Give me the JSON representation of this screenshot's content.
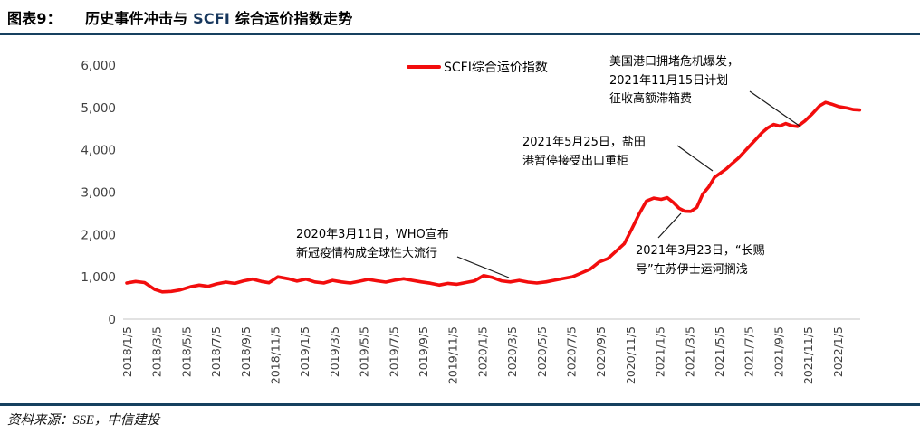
{
  "header": {
    "label": "图表9：",
    "title_pre": "历史事件冲击与 ",
    "title_scfi": "SCFI",
    "title_post": " 综合运价指数走势"
  },
  "legend": {
    "label": "SCFI综合运价指数"
  },
  "footer": {
    "source": "资料来源：SSE，中信建投"
  },
  "colors": {
    "line": "#f20d0d",
    "rule": "#16405f",
    "scfi_text": "#17375d",
    "axis_line": "#d9d9d9",
    "tick_text": "#404040",
    "pointer": "#1a1a1a"
  },
  "chart_data": {
    "type": "line",
    "title": "SCFI综合运价指数",
    "xlabel": "",
    "ylabel": "",
    "ylim": [
      0,
      6000
    ],
    "y_ticks": [
      0,
      1000,
      2000,
      3000,
      4000,
      5000,
      6000
    ],
    "x_tick_labels": [
      "2018/1/5",
      "2018/3/5",
      "2018/5/5",
      "2018/7/5",
      "2018/9/5",
      "2018/11/5",
      "2019/1/5",
      "2019/3/5",
      "2019/5/5",
      "2019/7/5",
      "2019/9/5",
      "2019/11/5",
      "2020/1/5",
      "2020/3/5",
      "2020/5/5",
      "2020/7/5",
      "2020/9/5",
      "2020/11/5",
      "2021/1/5",
      "2021/3/5",
      "2021/5/5",
      "2021/7/5",
      "2021/9/5",
      "2021/11/5",
      "2022/1/5"
    ],
    "x_tick_interval_months": 2,
    "grid": false,
    "legend_position": "top-center",
    "series": [
      {
        "name": "SCFI综合运价指数",
        "color": "#f20d0d",
        "points_format": "[months_since_2018_1_5, index_value]",
        "points": [
          [
            0,
            855
          ],
          [
            0.6,
            890
          ],
          [
            1.2,
            865
          ],
          [
            1.9,
            700
          ],
          [
            2.4,
            645
          ],
          [
            3.0,
            655
          ],
          [
            3.6,
            690
          ],
          [
            4.3,
            765
          ],
          [
            4.9,
            805
          ],
          [
            5.5,
            775
          ],
          [
            6.1,
            835
          ],
          [
            6.7,
            875
          ],
          [
            7.3,
            845
          ],
          [
            7.9,
            905
          ],
          [
            8.5,
            945
          ],
          [
            9.1,
            890
          ],
          [
            9.6,
            860
          ],
          [
            10.2,
            1000
          ],
          [
            10.9,
            955
          ],
          [
            11.5,
            900
          ],
          [
            12.1,
            945
          ],
          [
            12.7,
            880
          ],
          [
            13.3,
            855
          ],
          [
            13.9,
            915
          ],
          [
            14.5,
            880
          ],
          [
            15.1,
            855
          ],
          [
            15.7,
            895
          ],
          [
            16.3,
            940
          ],
          [
            16.9,
            905
          ],
          [
            17.5,
            875
          ],
          [
            18.1,
            920
          ],
          [
            18.7,
            955
          ],
          [
            19.3,
            915
          ],
          [
            19.9,
            880
          ],
          [
            20.5,
            850
          ],
          [
            21.1,
            805
          ],
          [
            21.7,
            845
          ],
          [
            22.3,
            825
          ],
          [
            22.9,
            865
          ],
          [
            23.5,
            905
          ],
          [
            24.1,
            1030
          ],
          [
            24.7,
            985
          ],
          [
            25.3,
            905
          ],
          [
            25.9,
            880
          ],
          [
            26.5,
            915
          ],
          [
            27.1,
            875
          ],
          [
            27.7,
            855
          ],
          [
            28.3,
            880
          ],
          [
            28.9,
            920
          ],
          [
            29.5,
            960
          ],
          [
            30.1,
            1000
          ],
          [
            30.7,
            1090
          ],
          [
            31.3,
            1180
          ],
          [
            31.9,
            1350
          ],
          [
            32.5,
            1430
          ],
          [
            33.1,
            1620
          ],
          [
            33.6,
            1780
          ],
          [
            34.1,
            2120
          ],
          [
            34.6,
            2480
          ],
          [
            35.1,
            2790
          ],
          [
            35.6,
            2860
          ],
          [
            36.1,
            2830
          ],
          [
            36.5,
            2870
          ],
          [
            36.9,
            2760
          ],
          [
            37.3,
            2620
          ],
          [
            37.7,
            2550
          ],
          [
            38.1,
            2545
          ],
          [
            38.5,
            2640
          ],
          [
            38.9,
            2950
          ],
          [
            39.3,
            3120
          ],
          [
            39.7,
            3350
          ],
          [
            40.1,
            3450
          ],
          [
            40.5,
            3550
          ],
          [
            40.9,
            3680
          ],
          [
            41.3,
            3800
          ],
          [
            41.7,
            3950
          ],
          [
            42.1,
            4100
          ],
          [
            42.5,
            4250
          ],
          [
            42.9,
            4400
          ],
          [
            43.3,
            4520
          ],
          [
            43.7,
            4600
          ],
          [
            44.1,
            4560
          ],
          [
            44.5,
            4620
          ],
          [
            44.9,
            4570
          ],
          [
            45.3,
            4550
          ],
          [
            45.8,
            4680
          ],
          [
            46.3,
            4850
          ],
          [
            46.8,
            5040
          ],
          [
            47.2,
            5120
          ],
          [
            47.6,
            5080
          ],
          [
            48.1,
            5020
          ],
          [
            48.6,
            4990
          ],
          [
            49.1,
            4950
          ],
          [
            49.5,
            4940
          ]
        ]
      }
    ],
    "annotations": [
      {
        "text": "2020年3月11日，WHO宣布\n新冠疫情构成全球性大流行",
        "line": [
          505,
          284,
          562,
          307
        ]
      },
      {
        "text": "2021年5月25日，盐田\n港暂停接受出口重柜",
        "line": [
          748,
          161,
          787,
          189
        ]
      },
      {
        "text": "美国港口拥堵危机爆发，\n2021年11月15日计划\n征收高额滞箱费",
        "line": [
          828,
          101,
          884,
          140
        ]
      },
      {
        "text": "2021年3月23日，“长赐\n号”在苏伊士运河搁浅",
        "line": [
          752,
          236,
          727,
          263
        ]
      }
    ]
  }
}
